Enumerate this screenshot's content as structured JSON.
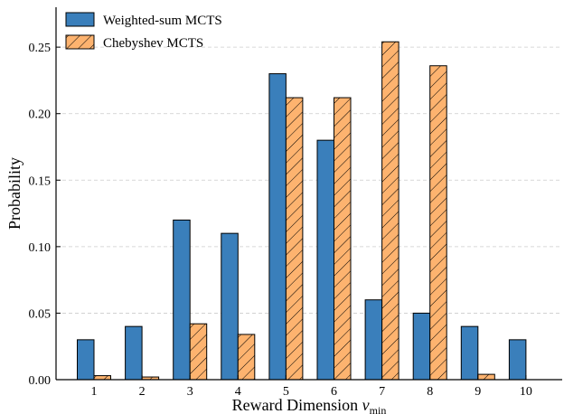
{
  "chart_data": {
    "type": "bar",
    "xlabel": "Reward Dimension ",
    "xlabel_var": "v",
    "xlabel_sub": "min",
    "ylabel": "Probability",
    "ylim": [
      0,
      0.28
    ],
    "yticks": [
      0.0,
      0.05,
      0.1,
      0.15,
      0.2,
      0.25
    ],
    "ytick_labels": [
      "0.00",
      "0.05",
      "0.10",
      "0.15",
      "0.20",
      "0.25"
    ],
    "grid": "horizontal dashed",
    "legend_position": "top-left",
    "categories": [
      "1",
      "2",
      "3",
      "4",
      "5",
      "6",
      "7",
      "8",
      "9",
      "10"
    ],
    "series": [
      {
        "name": "Weighted-sum MCTS",
        "color": "#3a7fbb",
        "hatch": "none",
        "values": [
          0.03,
          0.04,
          0.12,
          0.11,
          0.23,
          0.18,
          0.06,
          0.05,
          0.04,
          0.03
        ]
      },
      {
        "name": "Chebyshev MCTS",
        "color": "#fdb36f",
        "hatch": "diagonal",
        "values": [
          0.003,
          0.002,
          0.042,
          0.034,
          0.212,
          0.212,
          0.254,
          0.236,
          0.004,
          0.0
        ]
      }
    ]
  }
}
